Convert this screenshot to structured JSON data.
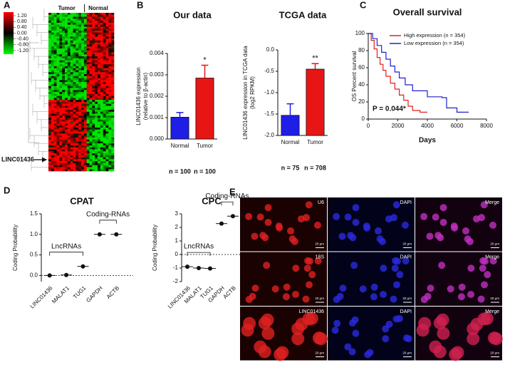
{
  "panels": [
    "A",
    "B",
    "C",
    "D",
    "E"
  ],
  "heatmap": {
    "columns": [
      "Tumor",
      "Normal"
    ],
    "colorbar_ticks": [
      {
        "value": 1.2,
        "label": "1.20"
      },
      {
        "value": 0.8,
        "label": "0.80"
      },
      {
        "value": 0.4,
        "label": "0.40"
      },
      {
        "value": 0,
        "label": "0.00"
      },
      {
        "value": -0.4,
        "label": "-0.40"
      },
      {
        "value": -0.8,
        "label": "-0.80"
      },
      {
        "value": -1.2,
        "label": "-1.20"
      }
    ],
    "highlight": "LINC01436"
  },
  "images": {
    "rows": [
      [
        "U6",
        "DAPI",
        "Merge"
      ],
      [
        "18S",
        "DAPI",
        "Merge"
      ],
      [
        "LINC01436",
        "DAPI",
        "Merge"
      ]
    ],
    "scale_bar": "20 µm"
  },
  "chart_data": [
    {
      "type": "bar",
      "title": "Our data",
      "y_label": [
        "LINC01436 expression",
        "(relative to β-actin)"
      ],
      "categories": [
        "Normal",
        "Tumor"
      ],
      "values": [
        0.00102,
        0.00285
      ],
      "errors": [
        0.00022,
        0.0006
      ],
      "colors": [
        "#1e1ee6",
        "#e81515"
      ],
      "sample_sizes": [
        "n = 100",
        "n = 100"
      ],
      "significance": {
        "category": "Tumor",
        "label": "*"
      },
      "ylim": [
        0,
        0.004
      ],
      "yticks": [
        {
          "value": 0,
          "label": "0.000"
        },
        {
          "value": 0.001,
          "label": "0.001"
        },
        {
          "value": 0.002,
          "label": "0.002"
        },
        {
          "value": 0.003,
          "label": "0.003"
        },
        {
          "value": 0.004,
          "label": "0.004"
        }
      ]
    },
    {
      "type": "bar",
      "title": "TCGA data",
      "y_label": [
        "LINC01436 expression in TCGA data",
        "(log2 RPKM)"
      ],
      "categories": [
        "Normal",
        "Tumor"
      ],
      "values": [
        -1.53,
        -0.45
      ],
      "errors": [
        0.27,
        0.13
      ],
      "colors": [
        "#1e1ee6",
        "#e81515"
      ],
      "sample_sizes": [
        "n = 75",
        "n = 708"
      ],
      "significance": {
        "category": "Tumor",
        "label": "**"
      },
      "ylim": [
        -2,
        0
      ],
      "yticks": [
        {
          "value": -2,
          "label": "-2.0"
        },
        {
          "value": -1.5,
          "label": "-1.5"
        },
        {
          "value": -1,
          "label": "-1.0"
        },
        {
          "value": -0.5,
          "label": "-0.5"
        },
        {
          "value": 0,
          "label": "0.0"
        }
      ]
    },
    {
      "type": "line",
      "title": "Overall survival",
      "x_label": "Days",
      "y_label": "OS Percent survival",
      "annotation": "P = 0.044*",
      "legend": "upper right",
      "xlim": [
        0,
        8000
      ],
      "xticks": [
        0,
        2000,
        4000,
        6000,
        8000
      ],
      "ylim": [
        0,
        100
      ],
      "yticks": [
        0,
        20,
        40,
        60,
        80,
        100
      ],
      "series": [
        {
          "name": "High expression (n = 354)",
          "color": "#e02020",
          "x": [
            0,
            200,
            400,
            600,
            800,
            1000,
            1200,
            1500,
            1800,
            2100,
            2400,
            2700,
            3000,
            3500,
            4000
          ],
          "values": [
            100,
            92,
            82,
            72,
            64,
            57,
            50,
            42,
            35,
            28,
            22,
            15,
            10,
            8,
            8
          ]
        },
        {
          "name": "Low expression (n = 354)",
          "color": "#2020d0",
          "x": [
            0,
            300,
            600,
            900,
            1200,
            1500,
            1800,
            2100,
            2500,
            3000,
            4000,
            5000,
            5300,
            6000,
            6800
          ],
          "values": [
            100,
            94,
            86,
            78,
            70,
            62,
            55,
            48,
            40,
            33,
            26,
            25,
            13,
            8,
            8
          ]
        }
      ]
    },
    {
      "type": "scatter",
      "title": "CPAT",
      "y_label": "Coding Probability",
      "categories": [
        "LINC01436",
        "MALAT1",
        "TUG1",
        "GAPDH",
        "ACTB"
      ],
      "values": [
        0,
        0.01,
        0.22,
        1,
        1
      ],
      "reference_line": 0,
      "groups": [
        {
          "label": "LncRNAs",
          "members": [
            "LINC01436",
            "MALAT1",
            "TUG1"
          ]
        },
        {
          "label": "Coding-RNAs",
          "members": [
            "GAPDH",
            "ACTB"
          ]
        }
      ],
      "ylim": [
        -0.15,
        1.5
      ],
      "yticks": [
        {
          "value": 0,
          "label": "0.0"
        },
        {
          "value": 0.5,
          "label": "0.5"
        },
        {
          "value": 1,
          "label": "1.0"
        },
        {
          "value": 1.5,
          "label": "1.5"
        }
      ]
    },
    {
      "type": "scatter",
      "title": "CPC",
      "y_label": "Coding Probability",
      "categories": [
        "LINC01436",
        "MALAT1",
        "TUG1",
        "GAPDH",
        "ACTB"
      ],
      "values": [
        -0.9,
        -1,
        -1.03,
        2.28,
        2.83
      ],
      "reference_line": 0,
      "groups": [
        {
          "label": "LncRNAs",
          "members": [
            "LINC01436",
            "MALAT1",
            "TUG1"
          ]
        },
        {
          "label": "Coding-RNAs",
          "members": [
            "GAPDH",
            "ACTB"
          ]
        }
      ],
      "ylim": [
        -2,
        3
      ],
      "yticks": [
        -2,
        -1,
        0,
        1,
        2,
        3
      ]
    }
  ]
}
